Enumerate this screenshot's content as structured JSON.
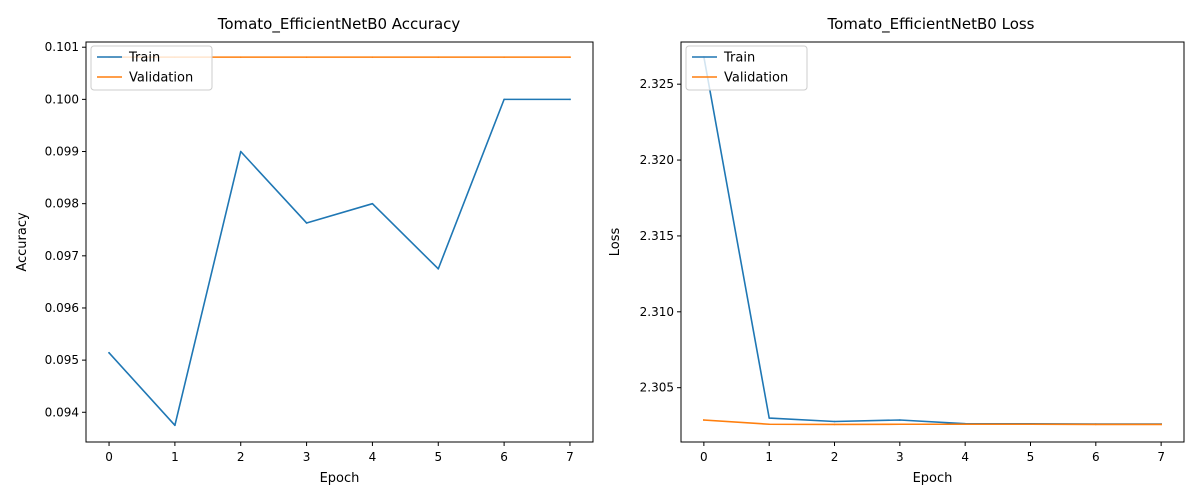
{
  "chart_data": [
    {
      "type": "line",
      "title": "Tomato_EfficientNetB0 Accuracy",
      "xlabel": "Epoch",
      "ylabel": "Accuracy",
      "x": [
        0,
        1,
        2,
        3,
        4,
        5,
        6,
        7
      ],
      "xticks": [
        "0",
        "1",
        "2",
        "3",
        "4",
        "5",
        "6",
        "7"
      ],
      "xlim": [
        -0.35,
        7.35
      ],
      "ylim": [
        0.09343,
        0.1011
      ],
      "yticks": [
        "0.094",
        "0.095",
        "0.096",
        "0.097",
        "0.098",
        "0.099",
        "0.100",
        "0.101"
      ],
      "legend_position": "upper-left",
      "series": [
        {
          "name": "Train",
          "color": "#1f77b4",
          "values": [
            0.09514,
            0.09375,
            0.099,
            0.09763,
            0.098,
            0.09675,
            0.1,
            0.1
          ]
        },
        {
          "name": "Validation",
          "color": "#ff7f0e",
          "values": [
            0.10081,
            0.10081,
            0.10081,
            0.10081,
            0.10081,
            0.10081,
            0.10081,
            0.10081
          ]
        }
      ]
    },
    {
      "type": "line",
      "title": "Tomato_EfficientNetB0 Loss",
      "xlabel": "Epoch",
      "ylabel": "Loss",
      "x": [
        0,
        1,
        2,
        3,
        4,
        5,
        6,
        7
      ],
      "xticks": [
        "0",
        "1",
        "2",
        "3",
        "4",
        "5",
        "6",
        "7"
      ],
      "xlim": [
        -0.35,
        7.35
      ],
      "ylim": [
        2.30142,
        2.32778
      ],
      "yticks": [
        "2.305",
        "2.310",
        "2.315",
        "2.320",
        "2.325"
      ],
      "legend_position": "upper-left",
      "series": [
        {
          "name": "Train",
          "color": "#1f77b4",
          "values": [
            2.3268,
            2.303,
            2.30277,
            2.30287,
            2.30263,
            2.30262,
            2.3026,
            2.3026
          ]
        },
        {
          "name": "Validation",
          "color": "#ff7f0e",
          "values": [
            2.30287,
            2.30259,
            2.30258,
            2.30259,
            2.30259,
            2.30259,
            2.30258,
            2.30258
          ]
        }
      ]
    }
  ]
}
